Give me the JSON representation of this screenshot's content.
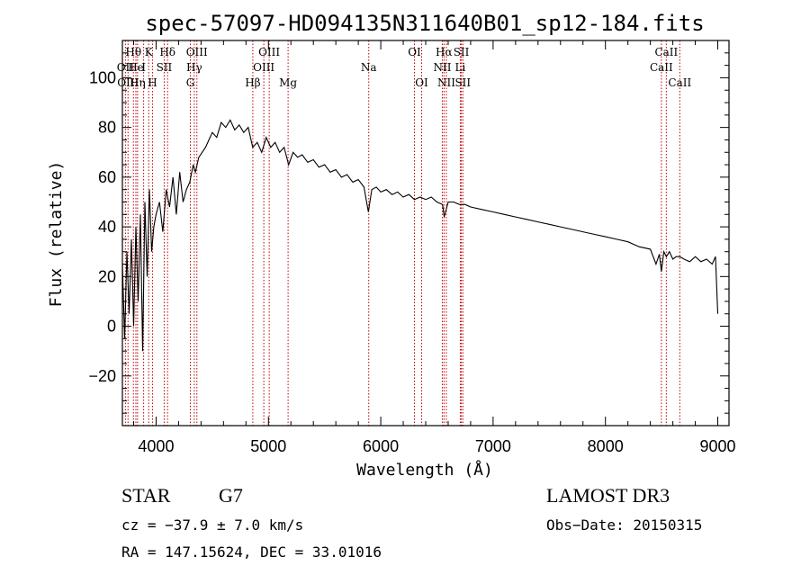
{
  "chart_data": {
    "type": "line",
    "title": "spec-57097-HD094135N311640B01_sp12-184.fits",
    "xlabel": "Wavelength (Å)",
    "ylabel": "Flux (relative)",
    "xlim": [
      3700,
      9100
    ],
    "ylim": [
      -40,
      115
    ],
    "xticks": [
      4000,
      5000,
      6000,
      7000,
      8000,
      9000
    ],
    "xtick_labels": [
      "4000",
      "5000",
      "6000",
      "7000",
      "8000",
      "9000"
    ],
    "yticks": [
      -20,
      0,
      20,
      40,
      60,
      80,
      100
    ],
    "ytick_labels": [
      "−20",
      "0",
      "20",
      "40",
      "60",
      "80",
      "100"
    ],
    "grid": false,
    "series": [
      {
        "x": [
          3700,
          3720,
          3740,
          3760,
          3780,
          3800,
          3820,
          3840,
          3860,
          3880,
          3900,
          3920,
          3940,
          3960,
          3980,
          4000,
          4030,
          4060,
          4090,
          4120,
          4150,
          4180,
          4210,
          4240,
          4270,
          4300,
          4330,
          4350,
          4380,
          4410,
          4440,
          4470,
          4500,
          4540,
          4580,
          4620,
          4660,
          4700,
          4740,
          4780,
          4820,
          4860,
          4900,
          4940,
          4980,
          5020,
          5060,
          5100,
          5140,
          5180,
          5220,
          5260,
          5300,
          5350,
          5400,
          5450,
          5500,
          5550,
          5600,
          5650,
          5700,
          5750,
          5800,
          5850,
          5890,
          5920,
          5960,
          6000,
          6050,
          6100,
          6150,
          6200,
          6250,
          6300,
          6350,
          6400,
          6450,
          6500,
          6550,
          6565,
          6600,
          6650,
          6700,
          6750,
          6800,
          6900,
          7000,
          7100,
          7200,
          7300,
          7400,
          7500,
          7600,
          7700,
          7800,
          7900,
          8000,
          8100,
          8200,
          8300,
          8400,
          8450,
          8480,
          8498,
          8520,
          8542,
          8570,
          8600,
          8630,
          8662,
          8700,
          8750,
          8800,
          8850,
          8900,
          8950,
          8980,
          9000
        ],
        "y": [
          25,
          -5,
          30,
          5,
          35,
          0,
          40,
          10,
          45,
          -10,
          50,
          20,
          55,
          30,
          40,
          45,
          50,
          38,
          55,
          48,
          60,
          45,
          62,
          50,
          55,
          58,
          65,
          62,
          68,
          70,
          72,
          75,
          78,
          76,
          82,
          80,
          83,
          79,
          81,
          78,
          80,
          72,
          74,
          70,
          76,
          72,
          74,
          70,
          72,
          65,
          70,
          68,
          69,
          66,
          67,
          64,
          65,
          62,
          63,
          60,
          61,
          58,
          59,
          56,
          46,
          55,
          56,
          54,
          55,
          53,
          54,
          52,
          53,
          51,
          52,
          51,
          52,
          50,
          49,
          44,
          50,
          50,
          49,
          49,
          48,
          47,
          46,
          45,
          44,
          43,
          42,
          41,
          40,
          39,
          38,
          37,
          36,
          35,
          34,
          32,
          31,
          25,
          29,
          22,
          30,
          28,
          30,
          27,
          28,
          28,
          27,
          26,
          28,
          26,
          27,
          25,
          28,
          5
        ]
      }
    ],
    "spectral_lines": [
      {
        "label": "OII",
        "x": 3727,
        "row": 1
      },
      {
        "label": "Hθ",
        "x": 3798,
        "row": 0
      },
      {
        "label": "OIII",
        "x": 3750,
        "row": 2
      },
      {
        "label": "He",
        "x": 3820,
        "row": 1
      },
      {
        "label": "Hη",
        "x": 3835,
        "row": 2
      },
      {
        "label": "K",
        "x": 3934,
        "row": 0
      },
      {
        "label": "I",
        "x": 3889,
        "row": 1
      },
      {
        "label": "H",
        "x": 3968,
        "row": 2
      },
      {
        "label": "SII",
        "x": 4072,
        "row": 1
      },
      {
        "label": "Hδ",
        "x": 4102,
        "row": 0
      },
      {
        "label": "OIII",
        "x": 4363,
        "row": 0
      },
      {
        "label": "Hγ",
        "x": 4340,
        "row": 1
      },
      {
        "label": "G",
        "x": 4305,
        "row": 2
      },
      {
        "label": "Hβ",
        "x": 4861,
        "row": 2
      },
      {
        "label": "OIII",
        "x": 5007,
        "row": 0
      },
      {
        "label": "OIII",
        "x": 4959,
        "row": 1
      },
      {
        "label": "Mg",
        "x": 5175,
        "row": 2
      },
      {
        "label": "Na",
        "x": 5893,
        "row": 1
      },
      {
        "label": "OI",
        "x": 6300,
        "row": 0
      },
      {
        "label": "OI",
        "x": 6364,
        "row": 2
      },
      {
        "label": "Hα",
        "x": 6563,
        "row": 0
      },
      {
        "label": "NII",
        "x": 6548,
        "row": 1
      },
      {
        "label": "NII",
        "x": 6584,
        "row": 2
      },
      {
        "label": "SII",
        "x": 6717,
        "row": 0
      },
      {
        "label": "Li",
        "x": 6708,
        "row": 1
      },
      {
        "label": "SII",
        "x": 6731,
        "row": 2
      },
      {
        "label": "CaII",
        "x": 8542,
        "row": 0
      },
      {
        "label": "CaII",
        "x": 8498,
        "row": 1
      },
      {
        "label": "CaII",
        "x": 8662,
        "row": 2
      }
    ],
    "info": {
      "class": "STAR",
      "subclass": "G7",
      "survey": "LAMOST DR3",
      "cz": "cz = −37.9 ± 7.0 km/s",
      "obs_date": "Obs−Date: 20150315",
      "coords": "RA = 147.15624, DEC =  33.01016"
    }
  }
}
